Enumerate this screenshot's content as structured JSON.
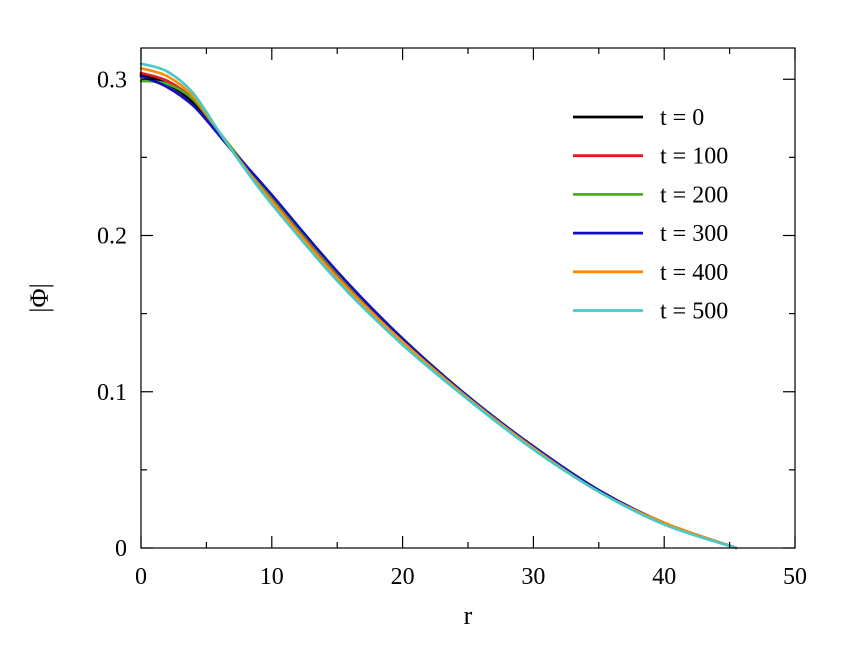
{
  "chart_data": {
    "type": "line",
    "xlabel": "r",
    "ylabel": "|Φ|",
    "xlim": [
      0,
      50
    ],
    "ylim": [
      0,
      0.32
    ],
    "xticks": [
      0,
      10,
      20,
      30,
      40,
      50
    ],
    "yticks": [
      0,
      0.1,
      0.2,
      0.3
    ],
    "xtick_labels": [
      "0",
      "10",
      "20",
      "30",
      "40",
      "50"
    ],
    "ytick_labels": [
      "0",
      "0.1",
      "0.2",
      "0.3"
    ],
    "grid": false,
    "legend_position": "top-right",
    "series": [
      {
        "name": "t = 0",
        "color": "#000000",
        "x": [
          0,
          2,
          4,
          6,
          8,
          10,
          15,
          20,
          25,
          30,
          35,
          40,
          45.5
        ],
        "y": [
          0.303,
          0.297,
          0.285,
          0.264,
          0.244,
          0.225,
          0.176,
          0.134,
          0.097,
          0.065,
          0.037,
          0.016,
          0.0
        ]
      },
      {
        "name": "t = 100",
        "color": "#e41a1c",
        "x": [
          0,
          2,
          4,
          6,
          8,
          10,
          15,
          20,
          25,
          30,
          35,
          40,
          45.5
        ],
        "y": [
          0.304,
          0.299,
          0.287,
          0.265,
          0.244,
          0.224,
          0.175,
          0.133,
          0.096,
          0.064,
          0.037,
          0.016,
          0.0
        ]
      },
      {
        "name": "t = 200",
        "color": "#4dac26",
        "x": [
          0,
          2,
          4,
          6,
          8,
          10,
          15,
          20,
          25,
          30,
          35,
          40,
          45.5
        ],
        "y": [
          0.299,
          0.297,
          0.287,
          0.266,
          0.245,
          0.225,
          0.176,
          0.134,
          0.097,
          0.065,
          0.037,
          0.016,
          0.0
        ]
      },
      {
        "name": "t = 300",
        "color": "#1010c0",
        "x": [
          0,
          2,
          4,
          6,
          8,
          10,
          15,
          20,
          25,
          30,
          35,
          40,
          45.5
        ],
        "y": [
          0.302,
          0.295,
          0.283,
          0.264,
          0.245,
          0.226,
          0.177,
          0.134,
          0.097,
          0.065,
          0.037,
          0.016,
          0.0
        ]
      },
      {
        "name": "t = 400",
        "color": "#ff8c00",
        "x": [
          0,
          2,
          4,
          6,
          8,
          10,
          15,
          20,
          25,
          30,
          35,
          40,
          45.5
        ],
        "y": [
          0.307,
          0.302,
          0.289,
          0.266,
          0.243,
          0.222,
          0.173,
          0.132,
          0.096,
          0.064,
          0.036,
          0.016,
          0.0
        ]
      },
      {
        "name": "t = 500",
        "color": "#48c9c9",
        "x": [
          0,
          2,
          4,
          6,
          8,
          10,
          15,
          20,
          25,
          30,
          35,
          40,
          45.5
        ],
        "y": [
          0.31,
          0.305,
          0.291,
          0.266,
          0.242,
          0.22,
          0.171,
          0.13,
          0.095,
          0.063,
          0.036,
          0.015,
          0.0
        ]
      }
    ]
  }
}
